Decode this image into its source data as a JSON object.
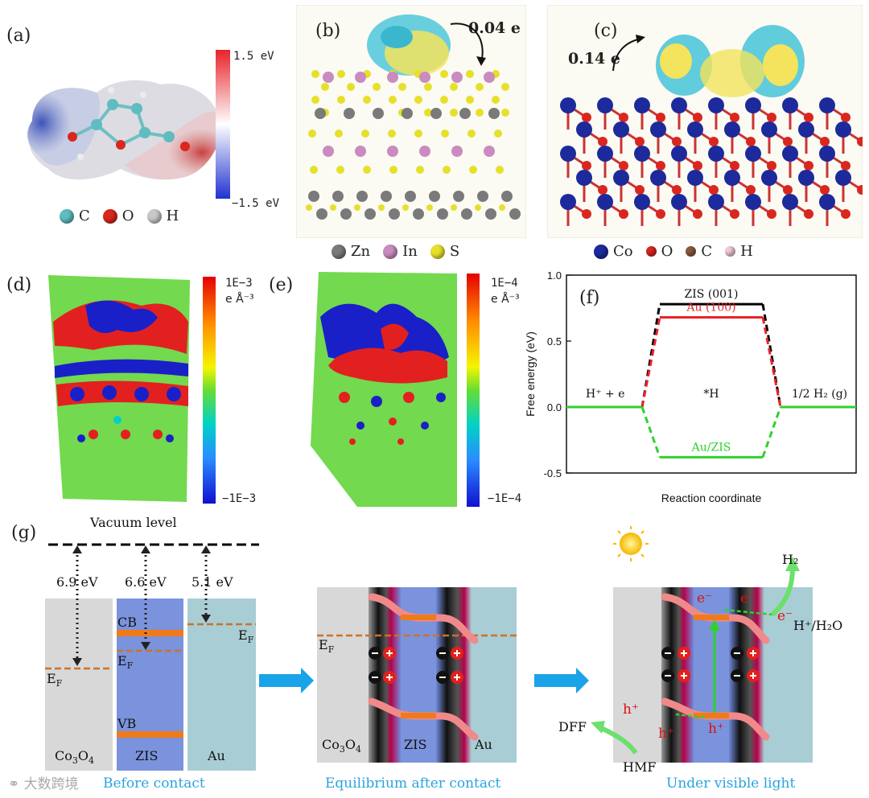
{
  "panel_labels": {
    "a": "(a)",
    "b": "(b)",
    "c": "(c)",
    "d": "(d)",
    "e": "(e)",
    "f": "(f)",
    "g": "(g)"
  },
  "panel_a": {
    "colorbar_max": "1.5 eV",
    "colorbar_min": "−1.5 eV",
    "legend": [
      {
        "symbol": "C",
        "color": "#5fbcc1"
      },
      {
        "symbol": "O",
        "color": "#d9271f"
      },
      {
        "symbol": "H",
        "color": "#c8c8c8"
      }
    ]
  },
  "panel_b": {
    "charge_transfer": "0.04 e",
    "legend": [
      {
        "symbol": "Zn",
        "color": "#7a7a7a"
      },
      {
        "symbol": "In",
        "color": "#c98bc0"
      },
      {
        "symbol": "S",
        "color": "#e6e02a"
      }
    ]
  },
  "panel_c": {
    "charge_transfer": "0.14 e",
    "legend": [
      {
        "symbol": "Co",
        "color": "#1d2a9b"
      },
      {
        "symbol": "O",
        "color": "#d9271f"
      },
      {
        "symbol": "C",
        "color": "#8b5a3c"
      },
      {
        "symbol": "H",
        "color": "#f3c9d4"
      }
    ]
  },
  "panel_d": {
    "colorbar_max": "1E−3",
    "unit": "e Å⁻³",
    "colorbar_min": "−1E−3"
  },
  "panel_e": {
    "colorbar_max": "1E−4",
    "unit": "e Å⁻³",
    "colorbar_min": "−1E−4"
  },
  "chart_data": {
    "type": "line",
    "title": "",
    "xlabel": "Reaction coordinate",
    "ylabel": "Free energy (eV)",
    "ylim": [
      -0.5,
      1.0
    ],
    "yticks": [
      "1.0",
      "0.5",
      "0.0",
      "-0.5"
    ],
    "x": [
      "H⁺ + e",
      "*H",
      "1/2 H₂ (g)"
    ],
    "series": [
      {
        "name": "ZIS (001)",
        "values": [
          0.0,
          0.78,
          0.0
        ],
        "color": "#000000"
      },
      {
        "name": "Au (100)",
        "values": [
          0.0,
          0.68,
          0.0
        ],
        "color": "#e8232a"
      },
      {
        "name": "Au/ZIS",
        "values": [
          0.0,
          -0.38,
          0.0
        ],
        "color": "#2fd12f"
      }
    ],
    "annotations": [
      "H⁺ + e",
      "*H",
      "1/2 H₂ (g)"
    ]
  },
  "panel_g": {
    "vacuum_level": "Vacuum level",
    "work_functions": [
      "6.9 eV",
      "6.6 eV",
      "5.1 eV"
    ],
    "labels": {
      "cb": "CB",
      "vb": "VB",
      "ef": "E",
      "ef_sub": "F",
      "co3o4": "Co",
      "co3o4_sub1": "3",
      "co3o4_o": "O",
      "co3o4_sub2": "4",
      "zis": "ZIS",
      "au": "Au",
      "e_minus": "e⁻",
      "h_plus": "h⁺",
      "h2": "H₂",
      "h_h2o": "H⁺/H₂O",
      "dff": "DFF",
      "hmf": "HMF"
    },
    "captions": [
      "Before contact",
      "Equilibrium after contact",
      "Under visible light"
    ]
  },
  "watermark": "大数跨境",
  "colors": {
    "accent": "#2aa3e0",
    "fermi": "#c8742a",
    "band": "#f07a1a"
  }
}
